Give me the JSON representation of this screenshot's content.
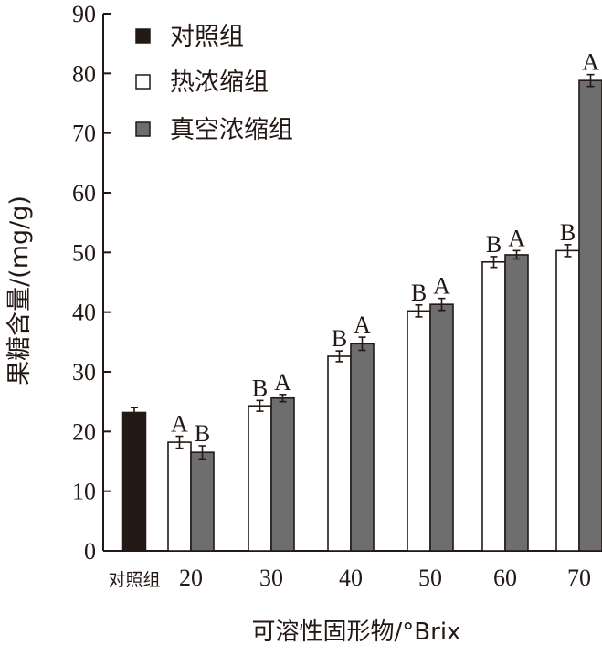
{
  "chart_data": {
    "type": "bar",
    "title": "",
    "xlabel": "可溶性固形物/°Brix",
    "ylabel": "果糖含量/(mg/g)",
    "ylim": [
      0,
      90
    ],
    "yticks": [
      0,
      10,
      20,
      30,
      40,
      50,
      60,
      70,
      80,
      90
    ],
    "grid": false,
    "legend_position": "top-left",
    "control": {
      "name": "对照组",
      "category": "对照组",
      "value": 23.2,
      "error": 0.8,
      "color": "#231815"
    },
    "categories": [
      "20",
      "30",
      "40",
      "50",
      "60",
      "70"
    ],
    "series": [
      {
        "name": "热浓缩组",
        "color": "#ffffff",
        "values": [
          18.2,
          24.3,
          32.6,
          40.2,
          48.4,
          50.3
        ],
        "errors": [
          1.0,
          0.9,
          0.9,
          1.0,
          0.9,
          1.0
        ],
        "labels": [
          "A",
          "B",
          "B",
          "B",
          "B",
          "B"
        ]
      },
      {
        "name": "真空浓缩组",
        "color": "#6e6e6e",
        "values": [
          16.5,
          25.6,
          34.7,
          41.3,
          49.6,
          78.8
        ],
        "errors": [
          1.1,
          0.6,
          1.1,
          1.0,
          0.7,
          1.0
        ],
        "labels": [
          "B",
          "A",
          "A",
          "A",
          "A",
          "A"
        ]
      }
    ]
  }
}
